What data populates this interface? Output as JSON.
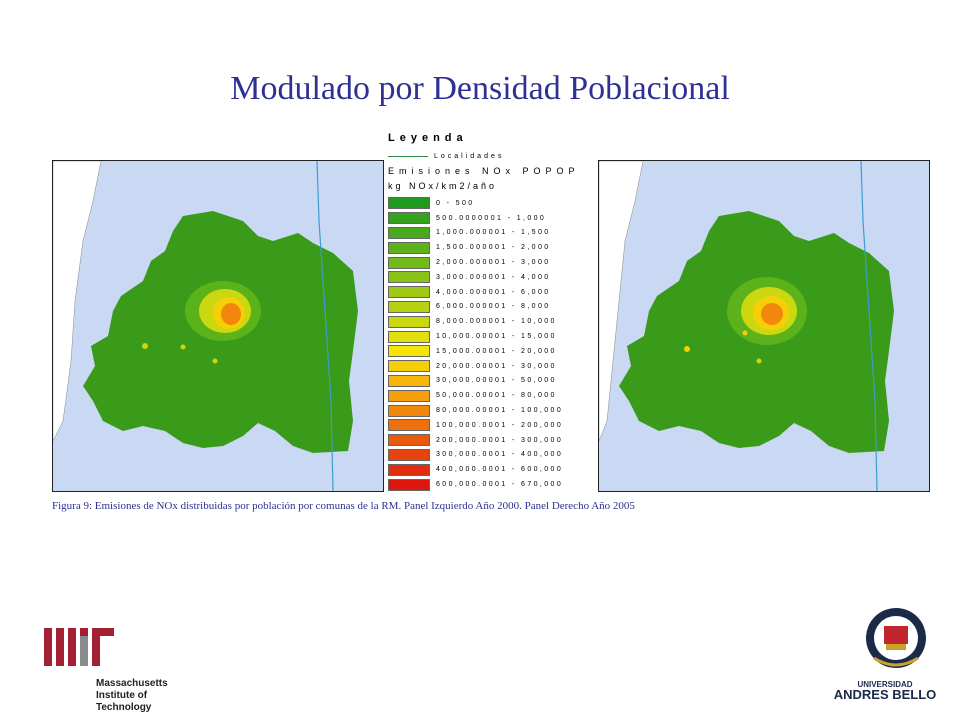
{
  "title": "Modulado por Densidad Poblacional",
  "legend": {
    "title": "Leyenda",
    "localidades_label": "Localidades",
    "localidades_color": "#2a8a3e",
    "subtitle1": "Emisiones NOx POPOP",
    "subtitle2": "kg NOx/km2/año",
    "classes": [
      {
        "label": "0 - 500",
        "color": "#1f9a1f"
      },
      {
        "label": "500.0000001 - 1,000",
        "color": "#33a21d"
      },
      {
        "label": "1,000.000001 - 1,500",
        "color": "#47aa1c"
      },
      {
        "label": "1,500.000001 - 2,000",
        "color": "#5cb21a"
      },
      {
        "label": "2,000.000001 - 3,000",
        "color": "#72ba18"
      },
      {
        "label": "3,000.000001 - 4,000",
        "color": "#88c216"
      },
      {
        "label": "4,000.000001 - 6,000",
        "color": "#9fc914"
      },
      {
        "label": "6,000.000001 - 8,000",
        "color": "#b6d012"
      },
      {
        "label": "8,000.000001 - 10,000",
        "color": "#ccd80f"
      },
      {
        "label": "10,000.00001 - 15,000",
        "color": "#e2e00c"
      },
      {
        "label": "15,000.00001 - 20,000",
        "color": "#f5e507"
      },
      {
        "label": "20,000.00001 - 30,000",
        "color": "#f7cf08"
      },
      {
        "label": "30,000.00001 - 50,000",
        "color": "#f6b70a"
      },
      {
        "label": "50,000.00001 - 80,000",
        "color": "#f49f0b"
      },
      {
        "label": "80,000.00001 - 100,000",
        "color": "#f1880c"
      },
      {
        "label": "100,000.0001 - 200,000",
        "color": "#ee700d"
      },
      {
        "label": "200,000.0001 - 300,000",
        "color": "#ea5a0d"
      },
      {
        "label": "300,000.0001 - 400,000",
        "color": "#e6430d"
      },
      {
        "label": "400,000.0001 - 600,000",
        "color": "#e22c0d"
      },
      {
        "label": "600,000.0001 - 670,000",
        "color": "#de160d"
      }
    ]
  },
  "caption": "Figura 9: Emisiones de NOx distribuidas por población por comunas de la RM. Panel Izquierdo Año 2000. Panel Derecho Año 2005",
  "colors": {
    "sea": "#c9d8f3",
    "land": "#ffffff",
    "region": "#3a9a1a",
    "boundary": "#3f9ccf",
    "title_text": "#2e3192"
  },
  "logos": {
    "mit_lines": [
      "Massachusetts",
      "Institute of",
      "Technology"
    ],
    "unab_line1": "UNIVERSIDAD",
    "unab_line2": "ANDRES BELLO"
  }
}
